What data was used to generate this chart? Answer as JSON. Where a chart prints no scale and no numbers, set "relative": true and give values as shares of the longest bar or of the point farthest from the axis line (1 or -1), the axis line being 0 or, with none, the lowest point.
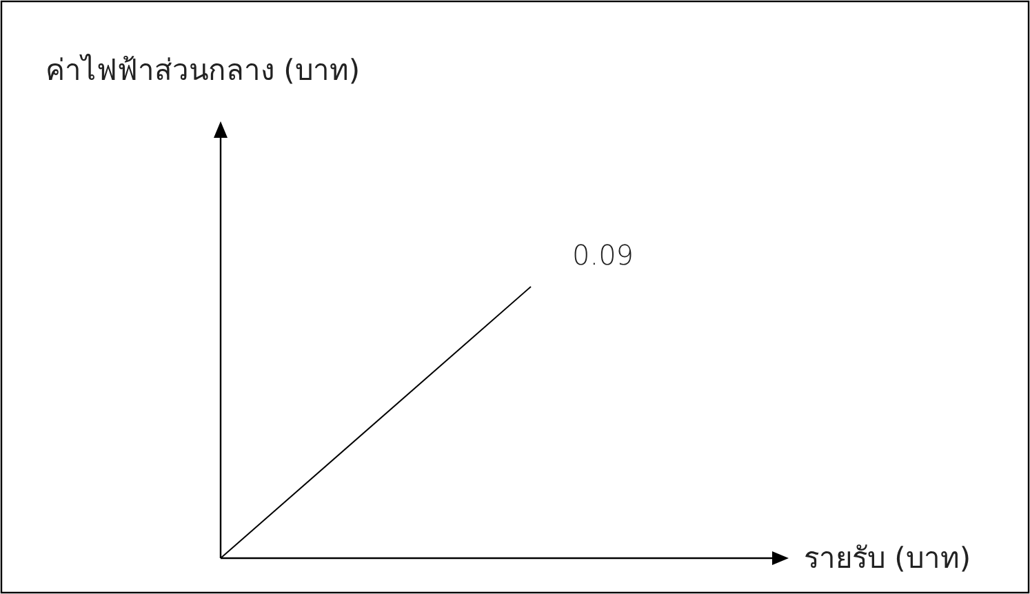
{
  "chart_data": {
    "type": "line",
    "title": "ค่าไฟฟ้าส่วนกลาง (บาท)",
    "xlabel": "รายรับ (บาท)",
    "relative": true,
    "categories": [
      null,
      null
    ],
    "series": [
      {
        "color": "#000000",
        "values": [
          0,
          1
        ]
      }
    ],
    "annotations": [
      "0.09"
    ],
    "marker": "none",
    "line_style": "solid"
  }
}
